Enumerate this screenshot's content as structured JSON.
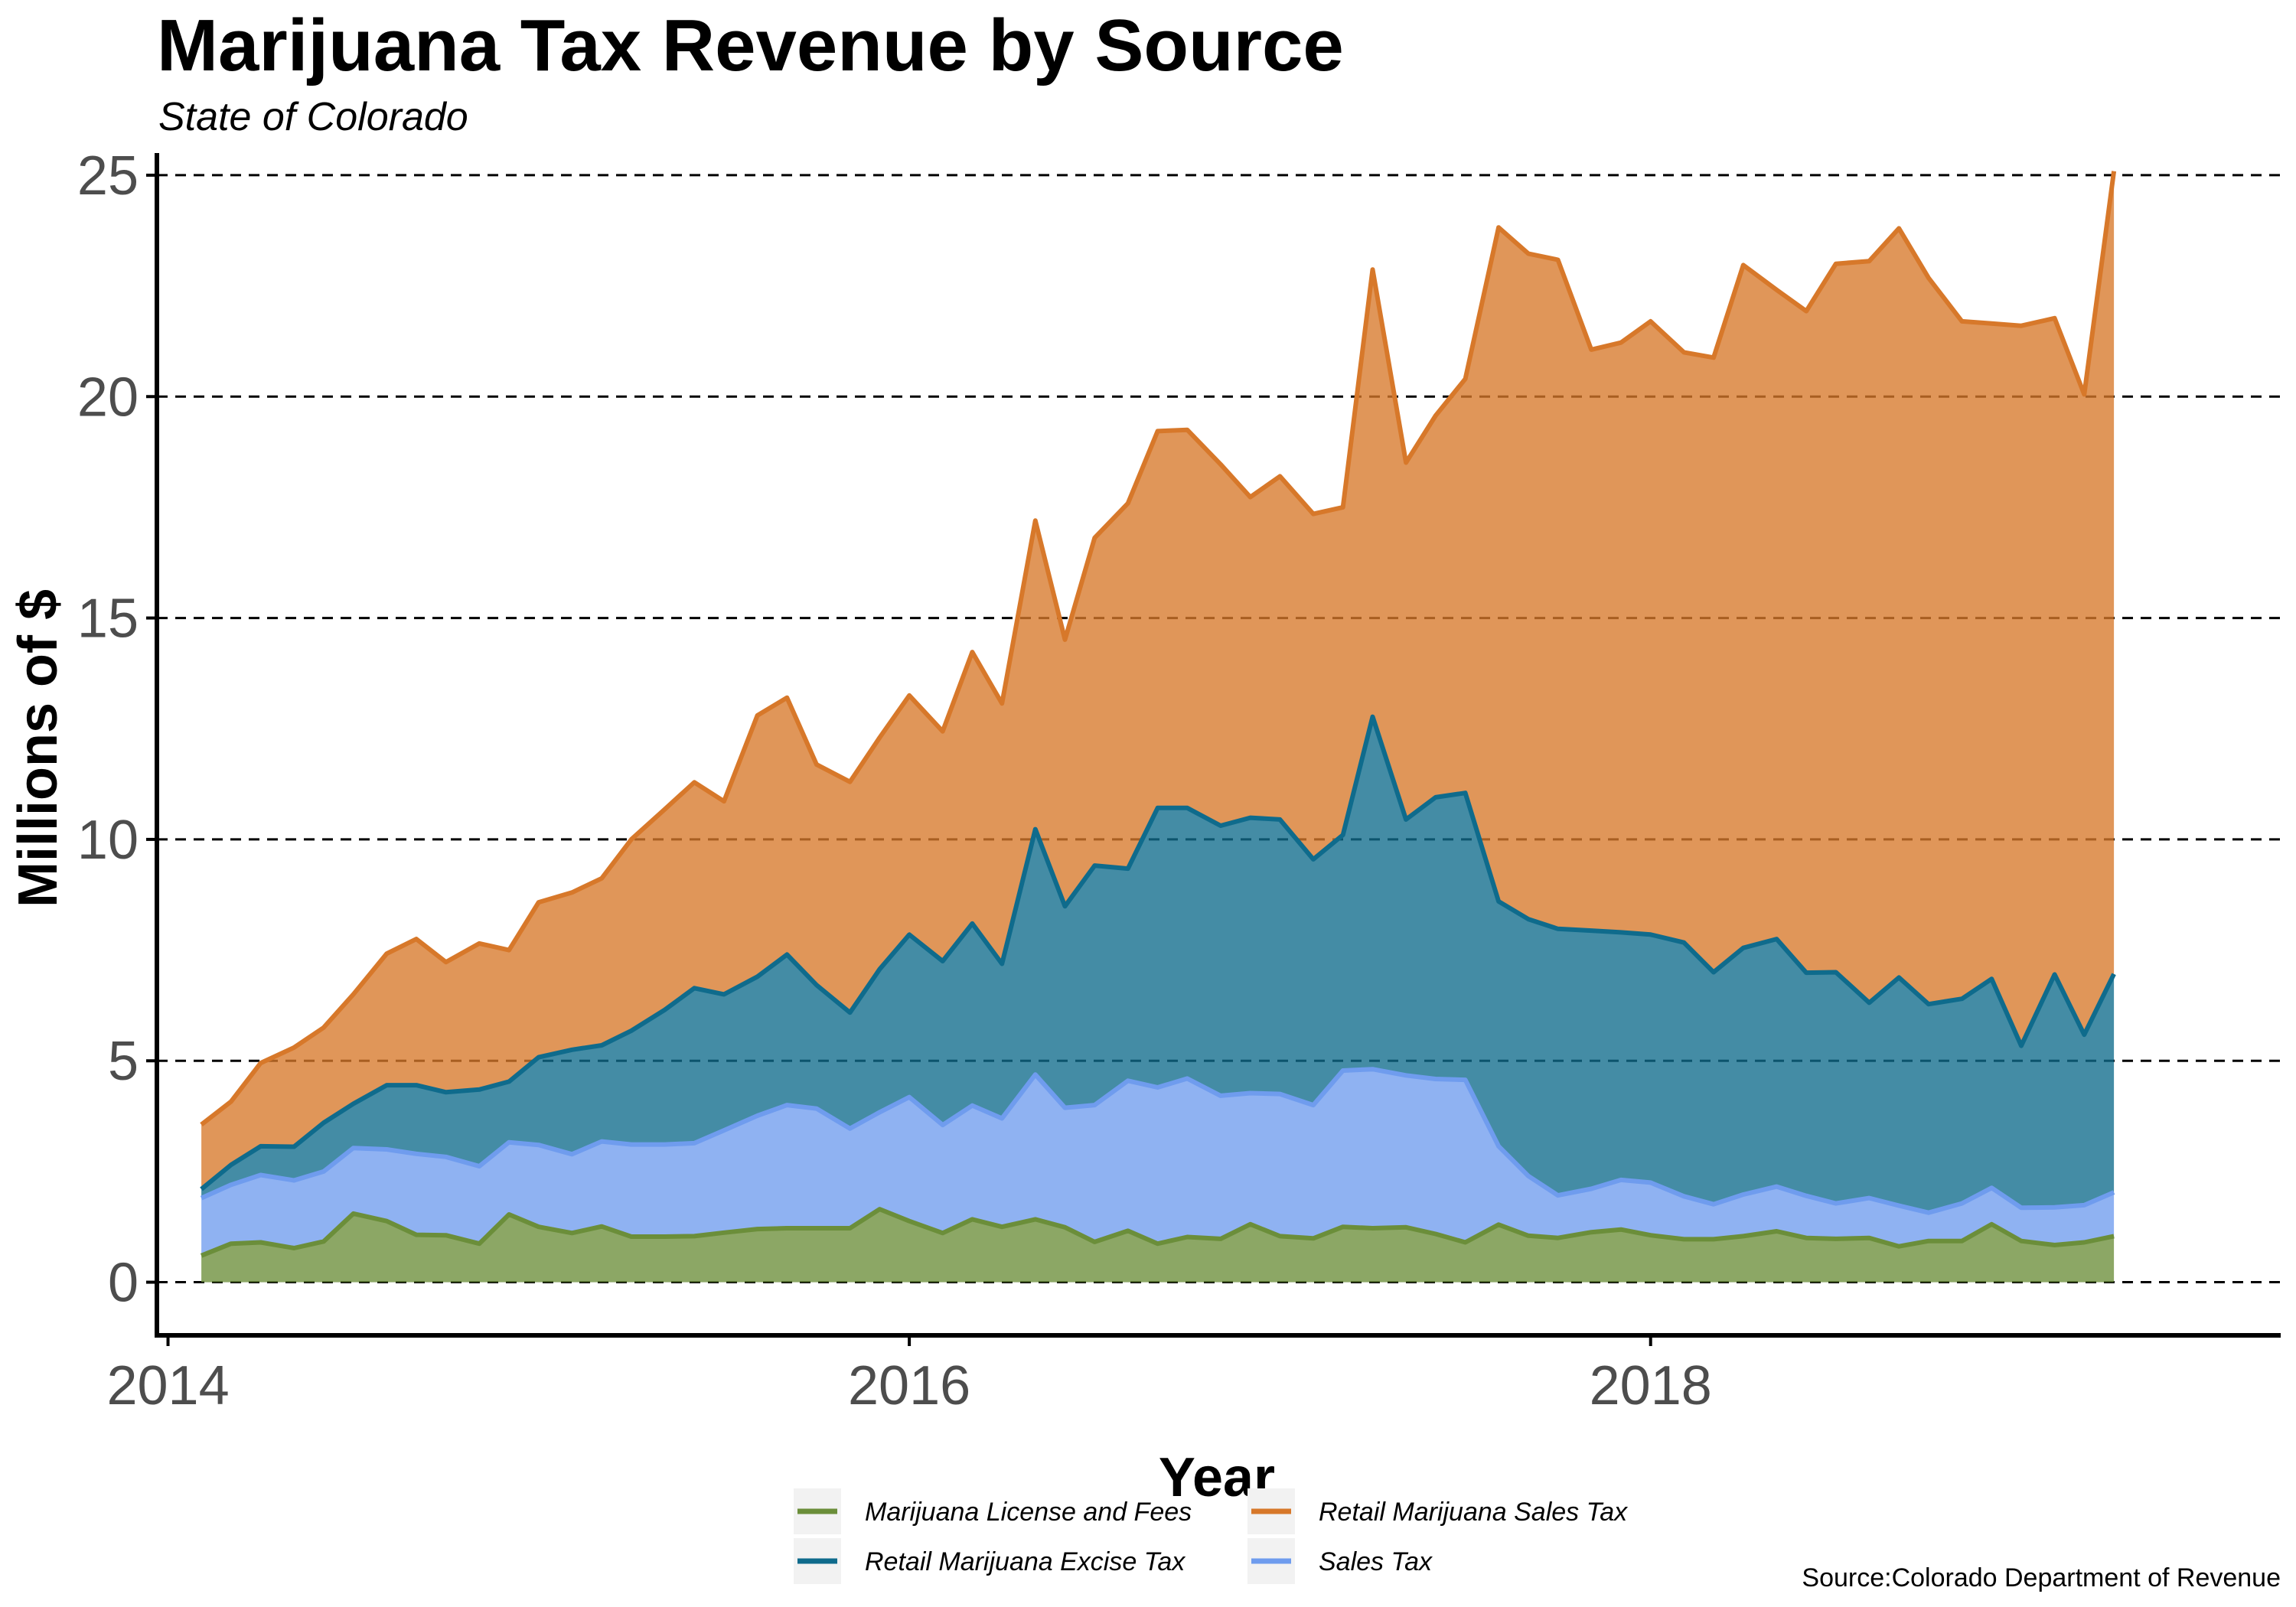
{
  "chart_data": {
    "type": "area",
    "title": "Marijuana Tax Revenue by Source",
    "subtitle": "State of Colorado",
    "xlabel": "Year",
    "ylabel": "Millions of $",
    "caption": "Source:Colorado Department of Revenue",
    "stacked": true,
    "xlim": [
      2013.97,
      2019.7
    ],
    "ylim": [
      -1.2,
      25.5
    ],
    "x_ticks": [
      2014,
      2016,
      2018
    ],
    "x_tick_labels": [
      "2014",
      "2016",
      "2018"
    ],
    "y_ticks": [
      0,
      5,
      10,
      15,
      20,
      25
    ],
    "y_tick_labels": [
      "0",
      "5",
      "10",
      "15",
      "20",
      "25"
    ],
    "grid": "horizontal dashed",
    "legend_position": "bottom",
    "x": [
      2014.09,
      2014.17,
      2014.25,
      2014.34,
      2014.42,
      2014.5,
      2014.59,
      2014.67,
      2014.75,
      2014.84,
      2014.92,
      2015.0,
      2015.09,
      2015.17,
      2015.25,
      2015.34,
      2015.42,
      2015.5,
      2015.59,
      2015.67,
      2015.75,
      2015.84,
      2015.92,
      2016.0,
      2016.09,
      2016.17,
      2016.25,
      2016.34,
      2016.42,
      2016.5,
      2016.59,
      2016.67,
      2016.75,
      2016.84,
      2016.92,
      2017.0,
      2017.09,
      2017.17,
      2017.25,
      2017.34,
      2017.42,
      2017.5,
      2017.59,
      2017.67,
      2017.75,
      2017.84,
      2017.92,
      2018.0,
      2018.09,
      2018.17,
      2018.25,
      2018.34,
      2018.42,
      2018.5,
      2018.59,
      2018.67,
      2018.75,
      2018.84,
      2018.92,
      2019.0,
      2019.09,
      2019.17,
      2019.25
    ],
    "series": [
      {
        "name": "Marijuana License and Fees",
        "color": "#6b8e3a",
        "values": [
          0.6,
          0.87,
          0.9,
          0.77,
          0.92,
          1.55,
          1.38,
          1.07,
          1.06,
          0.87,
          1.53,
          1.25,
          1.11,
          1.26,
          1.03,
          1.03,
          1.04,
          1.12,
          1.2,
          1.22,
          1.22,
          1.22,
          1.65,
          1.38,
          1.11,
          1.42,
          1.25,
          1.42,
          1.24,
          0.91,
          1.16,
          0.87,
          1.02,
          0.98,
          1.31,
          1.04,
          0.99,
          1.25,
          1.22,
          1.24,
          1.09,
          0.9,
          1.3,
          1.05,
          1.0,
          1.13,
          1.19,
          1.06,
          0.97,
          0.97,
          1.04,
          1.15,
          1.0,
          0.98,
          1.0,
          0.81,
          0.93,
          0.93,
          1.31,
          0.93,
          0.84,
          0.9,
          1.04
        ]
      },
      {
        "name": "Sales Tax",
        "color": "#6f9cee",
        "values": [
          1.3,
          1.33,
          1.52,
          1.53,
          1.58,
          1.48,
          1.62,
          1.83,
          1.77,
          1.75,
          1.63,
          1.85,
          1.78,
          1.92,
          2.08,
          2.08,
          2.1,
          2.31,
          2.56,
          2.78,
          2.7,
          2.25,
          2.19,
          2.8,
          2.44,
          2.57,
          2.45,
          3.27,
          2.7,
          3.09,
          3.39,
          3.53,
          3.58,
          3.23,
          2.96,
          3.21,
          3.01,
          3.53,
          3.59,
          3.43,
          3.5,
          3.67,
          1.77,
          1.35,
          0.96,
          0.98,
          1.12,
          1.19,
          0.97,
          0.79,
          0.94,
          1.01,
          0.95,
          0.8,
          0.9,
          0.92,
          0.64,
          0.85,
          0.82,
          0.75,
          0.85,
          0.84,
          0.99
        ]
      },
      {
        "name": "Retail Marijuana Excise Tax",
        "color": "#0f6b8c",
        "values": [
          0.2,
          0.45,
          0.65,
          0.76,
          1.1,
          1.0,
          1.45,
          1.55,
          1.46,
          1.73,
          1.37,
          1.98,
          2.36,
          2.17,
          2.57,
          3.04,
          3.5,
          3.07,
          3.14,
          3.4,
          2.79,
          2.62,
          3.23,
          3.67,
          3.7,
          4.11,
          3.49,
          5.54,
          4.55,
          5.41,
          4.79,
          6.31,
          6.11,
          6.1,
          6.22,
          6.2,
          5.55,
          5.32,
          7.96,
          5.78,
          6.36,
          6.48,
          5.53,
          5.8,
          6.02,
          5.83,
          5.59,
          5.6,
          5.73,
          5.24,
          5.57,
          5.59,
          5.04,
          5.22,
          4.41,
          5.15,
          4.71,
          4.62,
          4.72,
          3.66,
          5.26,
          3.85,
          4.93
        ]
      },
      {
        "name": "Retail Marijuana Sales Tax",
        "color": "#d7782a",
        "values": [
          1.46,
          1.43,
          1.88,
          2.24,
          2.15,
          2.47,
          2.97,
          3.3,
          2.94,
          3.3,
          2.97,
          3.5,
          3.55,
          3.77,
          4.32,
          4.53,
          4.65,
          4.36,
          5.9,
          5.8,
          4.98,
          5.21,
          5.23,
          5.4,
          5.19,
          6.13,
          5.88,
          6.97,
          6.02,
          7.4,
          8.25,
          8.51,
          8.54,
          8.16,
          7.24,
          7.75,
          7.8,
          7.4,
          10.1,
          8.06,
          8.62,
          9.35,
          15.22,
          15.03,
          15.11,
          13.12,
          13.32,
          13.85,
          13.33,
          13.88,
          15.42,
          14.66,
          14.94,
          16.0,
          16.75,
          16.92,
          16.4,
          15.3,
          14.8,
          16.26,
          14.82,
          14.46,
          18.13
        ]
      }
    ]
  },
  "legend": {
    "items": [
      {
        "label": "Marijuana License and Fees",
        "color": "#6b8e3a"
      },
      {
        "label": "Retail Marijuana Sales Tax",
        "color": "#d7782a"
      },
      {
        "label": "Retail Marijuana Excise Tax",
        "color": "#0f6b8c"
      },
      {
        "label": "Sales Tax",
        "color": "#6f9cee"
      }
    ]
  }
}
